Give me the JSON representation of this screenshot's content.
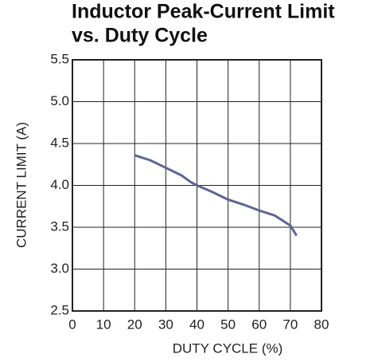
{
  "chart_data": {
    "type": "line",
    "title": [
      "Inductor Peak-Current Limit",
      "vs. Duty Cycle"
    ],
    "x_label": "DUTY CYCLE (%)",
    "y_label": "CURRENT LIMIT (A)",
    "x": [
      20,
      25,
      30,
      35,
      38,
      40,
      45,
      50,
      55,
      60,
      65,
      70,
      72
    ],
    "series": [
      {
        "color": "#5a6696",
        "values": [
          4.36,
          4.3,
          4.21,
          4.12,
          4.04,
          4.0,
          3.92,
          3.83,
          3.77,
          3.7,
          3.64,
          3.52,
          3.4
        ]
      }
    ],
    "xlim": [
      0,
      80
    ],
    "xticks": [
      0,
      10,
      20,
      30,
      40,
      50,
      60,
      70,
      80
    ],
    "ylim": [
      2.5,
      5.5
    ],
    "yticks": [
      2.5,
      {
        "value": 3,
        "label": "3.0"
      },
      3.5,
      {
        "value": 4,
        "label": "4.0"
      },
      4.5,
      {
        "value": 5,
        "label": "5.0"
      },
      5.5
    ],
    "grid": true
  }
}
